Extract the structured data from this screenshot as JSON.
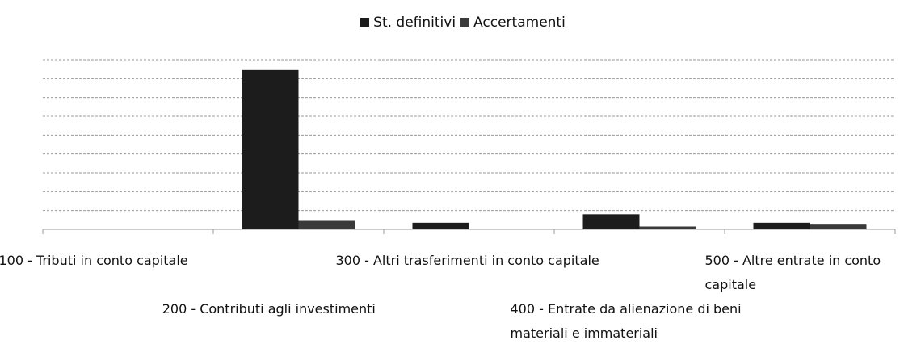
{
  "chart_data": {
    "type": "bar",
    "categories": [
      "100 - Tributi in conto capitale",
      "200 - Contributi agli investimenti",
      "300 - Altri trasferimenti in conto capitale",
      "400 - Entrate da alienazione di beni materiali e immateriali",
      "500 - Altre entrate in conto capitale"
    ],
    "series": [
      {
        "name": "St. definitivi",
        "color": "#1c1c1c",
        "values": [
          0,
          8.45,
          0.35,
          0.8,
          0.35
        ]
      },
      {
        "name": "Accertamenti",
        "color": "#3a3a3a",
        "values": [
          0,
          0.45,
          0,
          0.15,
          0.25
        ]
      }
    ],
    "ylim": [
      0,
      9
    ],
    "yticks": [
      1,
      2,
      3,
      4,
      5,
      6,
      7,
      8,
      9
    ],
    "grid": true,
    "legend": "top"
  }
}
